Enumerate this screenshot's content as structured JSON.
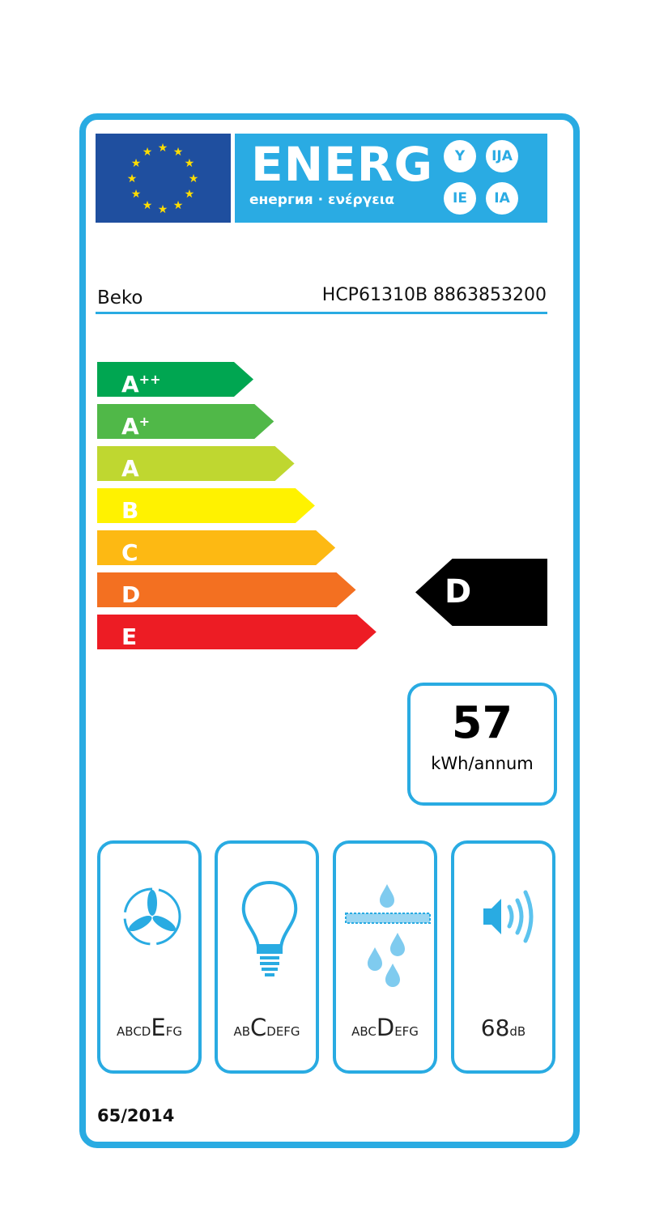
{
  "header": {
    "title": "ENERG",
    "subtitle": "енергия · ενέργεια",
    "suffixes": [
      "Y",
      "IJA",
      "IE",
      "IA"
    ]
  },
  "supplier": "Beko",
  "model": "HCP61310B 8863853200",
  "classes": [
    {
      "sup": "A",
      "plus": "++",
      "color": "#00a651"
    },
    {
      "sup": "A",
      "plus": "+",
      "color": "#50b848"
    },
    {
      "sup": "A",
      "plus": "",
      "color": "#bfd730"
    },
    {
      "sup": "B",
      "plus": "",
      "color": "#fff200"
    },
    {
      "sup": "C",
      "plus": "",
      "color": "#fdb913"
    },
    {
      "sup": "D",
      "plus": "",
      "color": "#f37021"
    },
    {
      "sup": "E",
      "plus": "",
      "color": "#ed1c24"
    }
  ],
  "rating": "D",
  "energy": {
    "value": "57",
    "unit": "kWh/annum"
  },
  "panels": [
    {
      "icon": "fan-icon",
      "before": "ABCD",
      "selected": "E",
      "after": "FG"
    },
    {
      "icon": "light-bulb-icon",
      "before": "AB",
      "selected": "C",
      "after": "DEFG"
    },
    {
      "icon": "grease-filter-icon",
      "before": "ABC",
      "selected": "D",
      "after": "EFG"
    },
    {
      "icon": "noise-icon",
      "value": "68",
      "unit": "dB"
    }
  ],
  "regulation": "65/2014",
  "colors": {
    "frame": "#29abe2",
    "flag": "#1f4f9f",
    "stars": "#ffdd00"
  }
}
